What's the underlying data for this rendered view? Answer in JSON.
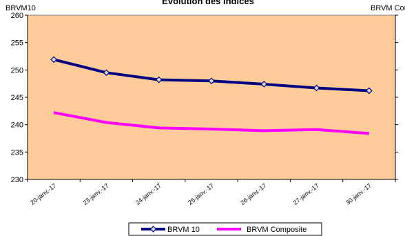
{
  "chart_data": {
    "type": "line",
    "title": "Évolution des indices",
    "left_axis_label": "BRVM10",
    "right_axis_label": "BRVM Composite",
    "categories": [
      "20-janv.-17",
      "23-janv.-17",
      "24-janv.-17",
      "25-janv.-17",
      "26-janv.-17",
      "27-janv.-17",
      "30-janv.-17"
    ],
    "ylim": [
      230,
      260
    ],
    "yticks": [
      230,
      235,
      240,
      245,
      250,
      255,
      260
    ],
    "grid": false,
    "legend_position": "bottom",
    "plot_background": "#FFCC99",
    "series": [
      {
        "name": "BRVM 10",
        "color": "#000080",
        "marker": "diamond",
        "values": [
          251.9,
          249.5,
          248.2,
          248.0,
          247.4,
          246.7,
          246.2
        ]
      },
      {
        "name": "BRVM Composite",
        "color": "#FF00FF",
        "marker": "none",
        "values": [
          242.2,
          240.4,
          239.4,
          239.2,
          238.9,
          239.1,
          238.4
        ]
      }
    ]
  }
}
